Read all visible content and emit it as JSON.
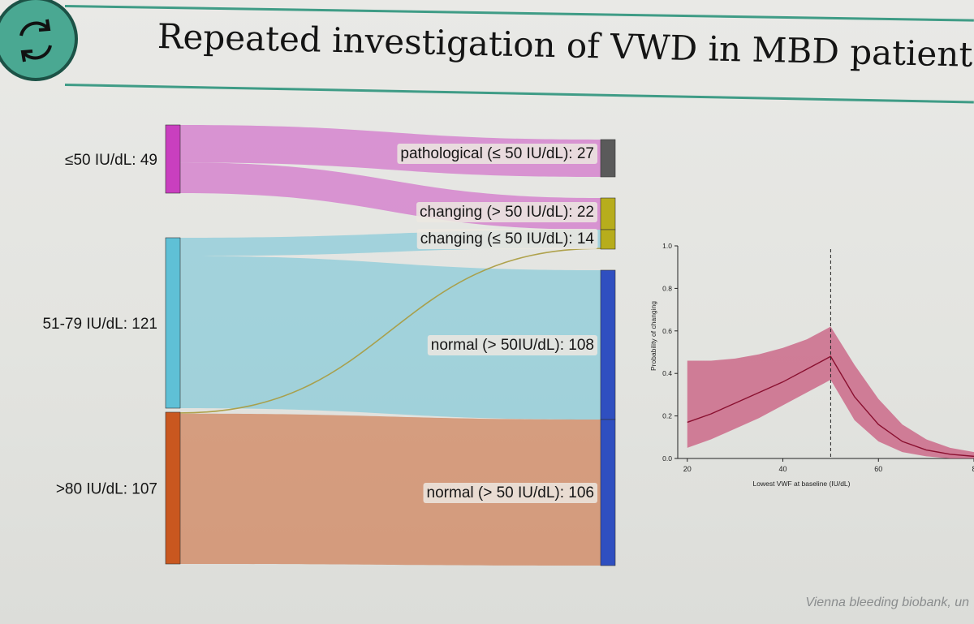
{
  "title": "Repeated investigation of VWD in MBD patients",
  "source_note": "Vienna bleeding biobank, un",
  "logo_icon": "refresh-cycle-icon",
  "colors": {
    "accent": "#3f9c86",
    "low": "#c93fbf",
    "mid": "#5fc0d6",
    "high": "#c9571f",
    "pathological": "#5a5a5a",
    "changing": "#b7ad1c",
    "normal": "#2f4fc0",
    "band": "#c8547a",
    "curve": "#8a1030"
  },
  "chart_data": [
    {
      "type": "sankey",
      "sources": [
        {
          "label": "≤50 IU/dL: 49",
          "value": 49,
          "color": "#c93fbf"
        },
        {
          "label": "51-79 IU/dL: 121",
          "value": 121,
          "color": "#5fc0d6"
        },
        {
          "label": ">80 IU/dL: 107",
          "value": 107,
          "color": "#c9571f"
        }
      ],
      "targets": [
        {
          "label": "pathological (≤ 50 IU/dL): 27",
          "value": 27,
          "color": "#5a5a5a"
        },
        {
          "label": "changing (> 50 IU/dL): 22",
          "value": 22,
          "color": "#b7ad1c"
        },
        {
          "label": "changing (≤ 50 IU/dL): 14",
          "value": 14,
          "color": "#b7ad1c"
        },
        {
          "label": "normal (> 50IU/dL): 108",
          "value": 108,
          "color": "#2f4fc0"
        },
        {
          "label": "normal (> 50 IU/dL): 106",
          "value": 106,
          "color": "#2f4fc0"
        }
      ],
      "flows": [
        {
          "source": 0,
          "target": 0,
          "value": 27
        },
        {
          "source": 0,
          "target": 1,
          "value": 22
        },
        {
          "source": 1,
          "target": 2,
          "value": 13
        },
        {
          "source": 1,
          "target": 3,
          "value": 108
        },
        {
          "source": 2,
          "target": 2,
          "value": 1
        },
        {
          "source": 2,
          "target": 4,
          "value": 106
        }
      ]
    },
    {
      "type": "line",
      "xlabel": "Lowest VWF at baseline (IU/dL)",
      "ylabel": "Probability of changing",
      "xlim": [
        18,
        80
      ],
      "ylim": [
        0,
        1.0
      ],
      "xticks": [
        "20",
        "40",
        "60",
        "8"
      ],
      "yticks": [
        "0.0",
        "0.2",
        "0.4",
        "0.6",
        "0.8",
        "1.0"
      ],
      "vline_x": 50,
      "series": [
        {
          "x": [
            20,
            25,
            30,
            35,
            40,
            45,
            50,
            55,
            60,
            65,
            70,
            75,
            80
          ],
          "y": [
            0.17,
            0.21,
            0.26,
            0.31,
            0.36,
            0.42,
            0.48,
            0.29,
            0.16,
            0.08,
            0.04,
            0.02,
            0.01
          ],
          "lower": [
            0.05,
            0.09,
            0.14,
            0.19,
            0.25,
            0.31,
            0.37,
            0.18,
            0.08,
            0.03,
            0.01,
            0.0,
            0.0
          ],
          "upper": [
            0.46,
            0.46,
            0.47,
            0.49,
            0.52,
            0.56,
            0.62,
            0.44,
            0.28,
            0.16,
            0.09,
            0.05,
            0.03
          ]
        }
      ]
    }
  ]
}
